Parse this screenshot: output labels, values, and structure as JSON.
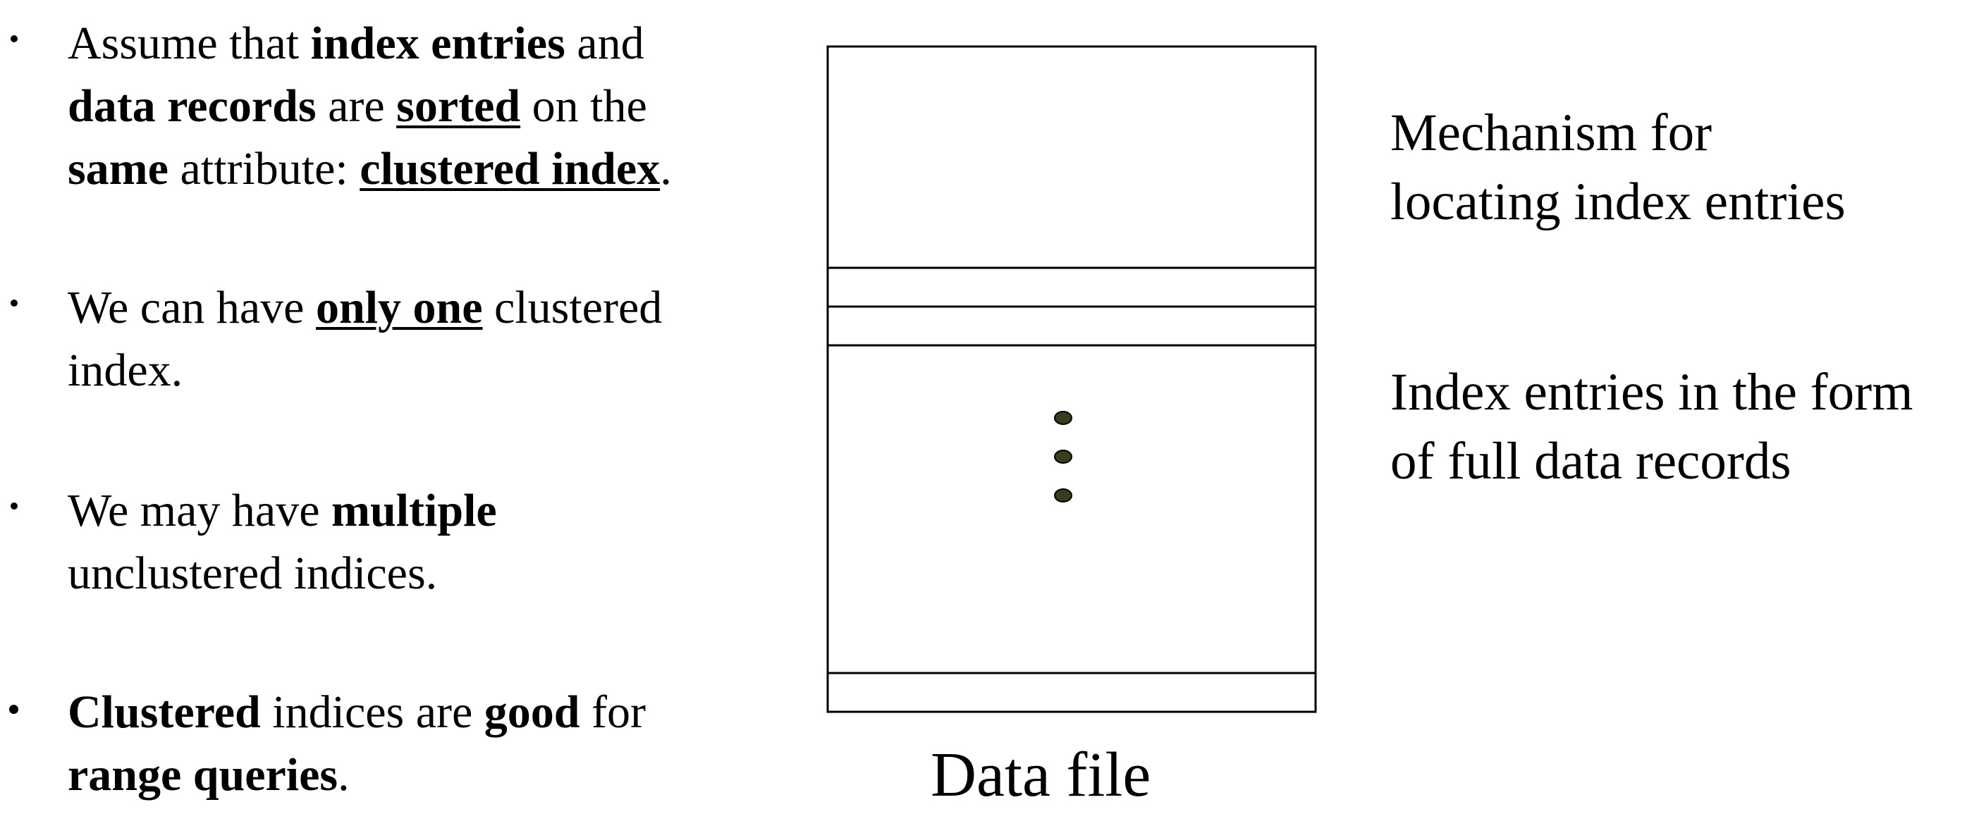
{
  "bullets": [
    {
      "lines": [
        [
          {
            "text": "Assume that ",
            "bold": false,
            "underline": false
          },
          {
            "text": "index entries",
            "bold": true,
            "underline": false
          },
          {
            "text": " and",
            "bold": false,
            "underline": false
          }
        ],
        [
          {
            "text": "data records",
            "bold": true,
            "underline": false
          },
          {
            "text": " are ",
            "bold": false,
            "underline": false
          },
          {
            "text": "sorted",
            "bold": true,
            "underline": true
          },
          {
            "text": " on the",
            "bold": false,
            "underline": false
          }
        ],
        [
          {
            "text": "same",
            "bold": true,
            "underline": false
          },
          {
            "text": " attribute: ",
            "bold": false,
            "underline": false
          },
          {
            "text": "clustered index",
            "bold": true,
            "underline": true
          },
          {
            "text": ".",
            "bold": false,
            "underline": false
          }
        ]
      ]
    },
    {
      "lines": [
        [
          {
            "text": "We can have ",
            "bold": false,
            "underline": false
          },
          {
            "text": "only one",
            "bold": true,
            "underline": true
          },
          {
            "text": " clustered",
            "bold": false,
            "underline": false
          }
        ],
        [
          {
            "text": "index.",
            "bold": false,
            "underline": false
          }
        ]
      ]
    },
    {
      "lines": [
        [
          {
            "text": "We may have ",
            "bold": false,
            "underline": false
          },
          {
            "text": "multiple",
            "bold": true,
            "underline": false
          }
        ],
        [
          {
            "text": "unclustered indices.",
            "bold": false,
            "underline": false
          }
        ]
      ]
    },
    {
      "lines": [
        [
          {
            "text": "Clustered",
            "bold": true,
            "underline": false
          },
          {
            "text": " indices are ",
            "bold": false,
            "underline": false
          },
          {
            "text": "good",
            "bold": true,
            "underline": false
          },
          {
            "text": " for",
            "bold": false,
            "underline": false
          }
        ],
        [
          {
            "text": "range queries",
            "bold": true,
            "underline": false
          },
          {
            "text": ".",
            "bold": false,
            "underline": false
          }
        ]
      ]
    }
  ],
  "diagram": {
    "mechanism_label": [
      "Mechanism for",
      "locating index entries"
    ],
    "entries_label": [
      "Index entries in the form",
      "of full data records"
    ],
    "caption": "Data file",
    "ellipsis_dot_color": "#3b3b1e"
  }
}
